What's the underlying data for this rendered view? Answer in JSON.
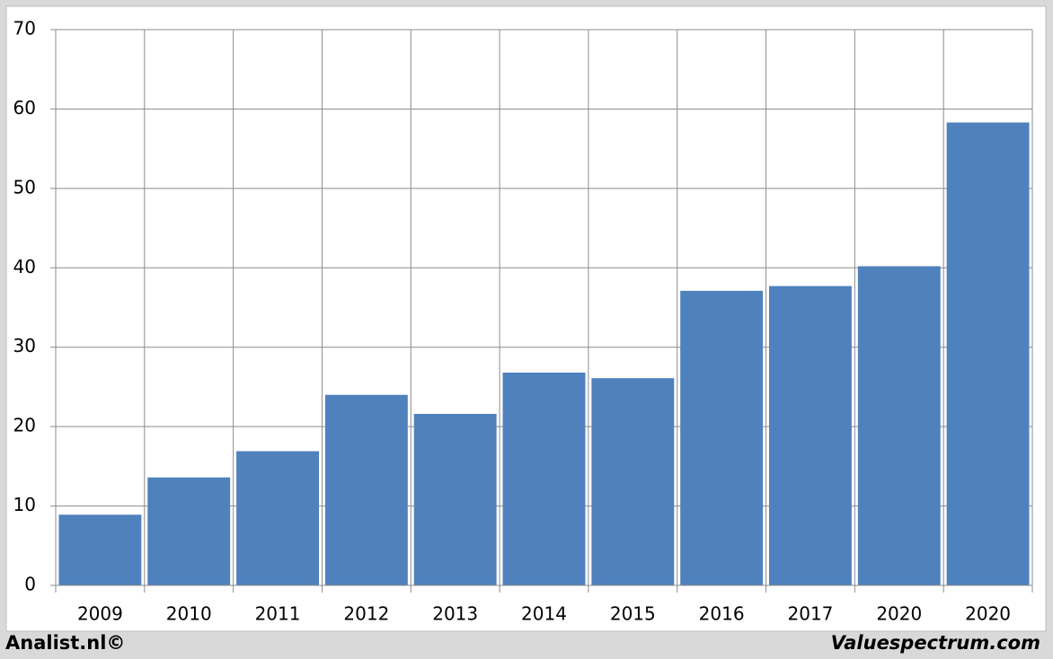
{
  "chart_data": {
    "type": "bar",
    "categories": [
      "2009",
      "2010",
      "2011",
      "2012",
      "2013",
      "2014",
      "2015",
      "2016",
      "2017",
      "2020",
      "2020"
    ],
    "values": [
      8.9,
      13.6,
      16.9,
      24.0,
      21.6,
      26.8,
      26.1,
      37.1,
      37.7,
      40.2,
      58.3
    ],
    "color": "#4f81bd",
    "ylim": [
      0,
      70
    ],
    "yticks": [
      0,
      10,
      20,
      30,
      40,
      50,
      60,
      70
    ],
    "grid": true
  },
  "footer": {
    "left": "Analist.nl©",
    "right": "Valuespectrum.com"
  }
}
